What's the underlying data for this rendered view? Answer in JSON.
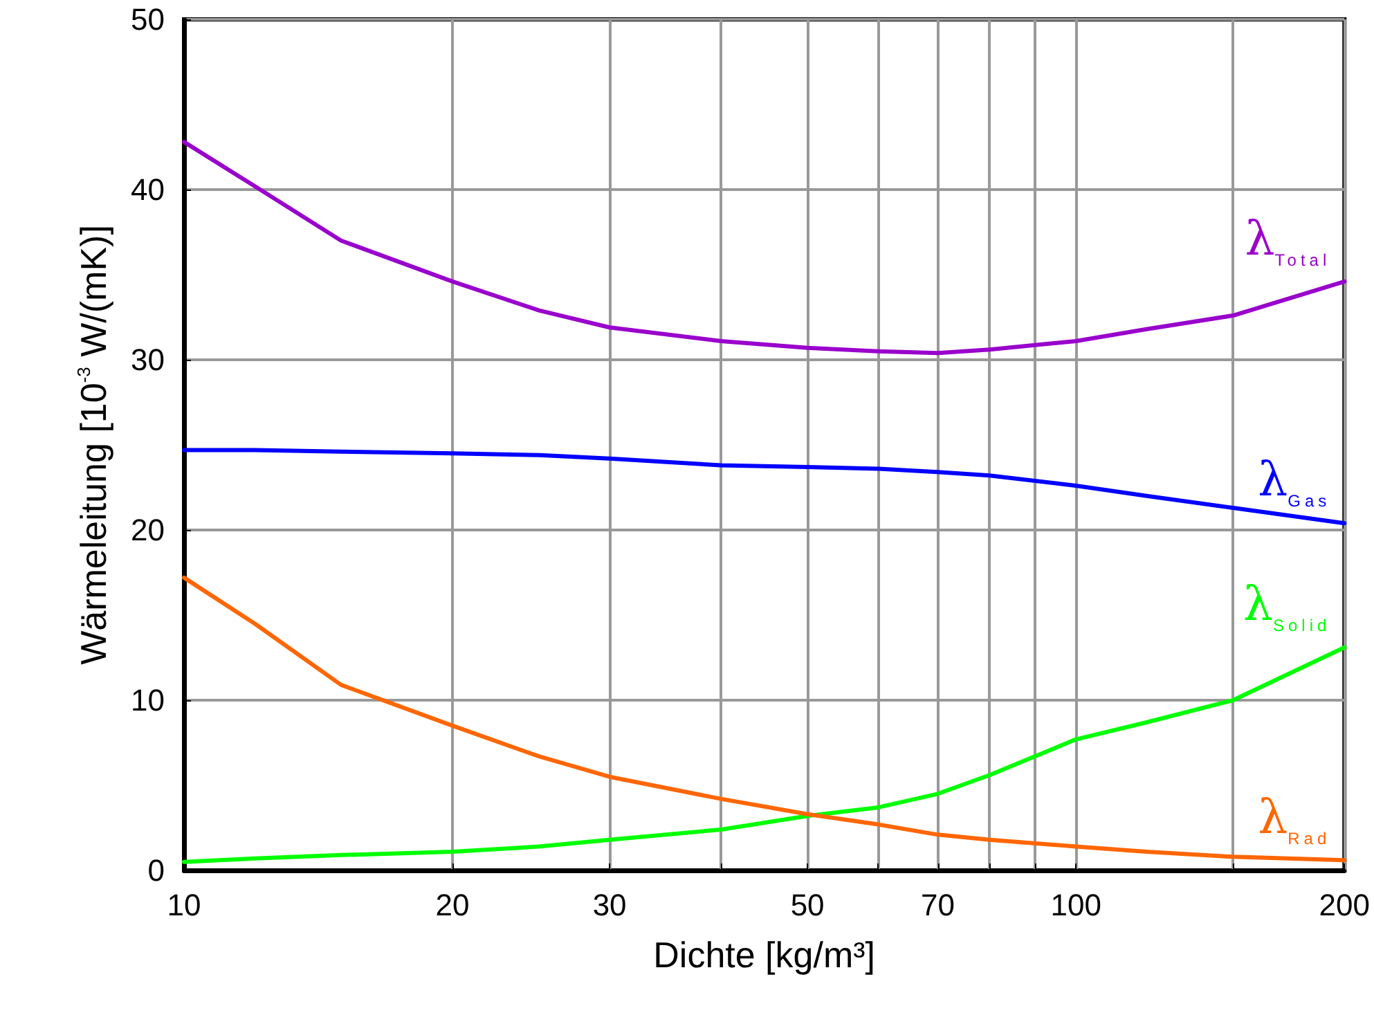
{
  "chart_data": {
    "type": "line",
    "xlabel": "Dichte [kg/m³]",
    "ylabel": "Wärmeleitung [10$^{-3}$ W/(mK)]",
    "x": [
      10,
      12,
      15,
      20,
      25,
      30,
      40,
      50,
      60,
      70,
      80,
      100,
      120,
      150,
      200
    ],
    "series": [
      {
        "name": "λ$_{Total}$",
        "color": "#9900cc",
        "values": [
          42.8,
          40.2,
          37.0,
          34.6,
          32.9,
          31.9,
          31.1,
          30.7,
          30.5,
          30.4,
          30.6,
          31.1,
          31.8,
          32.6,
          34.6
        ]
      },
      {
        "name": "λ$_{Gas}$",
        "color": "#0000ff",
        "values": [
          24.7,
          24.7,
          24.6,
          24.5,
          24.4,
          24.2,
          23.8,
          23.7,
          23.6,
          23.4,
          23.2,
          22.6,
          22.0,
          21.3,
          20.4
        ]
      },
      {
        "name": "λ$_{Solid}$",
        "color": "#00ff00",
        "values": [
          0.5,
          0.7,
          0.9,
          1.1,
          1.4,
          1.8,
          2.4,
          3.2,
          3.7,
          4.5,
          5.6,
          7.7,
          8.7,
          10.0,
          13.1
        ]
      },
      {
        "name": "λ$_{Rad}$",
        "color": "#ff6600",
        "values": [
          17.2,
          14.5,
          10.9,
          8.5,
          6.7,
          5.5,
          4.2,
          3.3,
          2.7,
          2.1,
          1.8,
          1.4,
          1.1,
          0.8,
          0.6
        ]
      }
    ],
    "log": "x",
    "xlim": [
      10,
      200
    ],
    "xticks": [
      10,
      20,
      30,
      {
        "value": 40,
        "label": null
      },
      50,
      {
        "value": 60,
        "label": null
      },
      70,
      {
        "value": 80,
        "label": null
      },
      {
        "value": 90,
        "label": null
      },
      100,
      {
        "value": 150,
        "label": null
      },
      200
    ],
    "ylim": [
      0,
      50
    ],
    "yticks": [
      0,
      10,
      20,
      30,
      40,
      50
    ],
    "grid": true,
    "legend": false,
    "marker": "none",
    "line_style": "solid"
  }
}
